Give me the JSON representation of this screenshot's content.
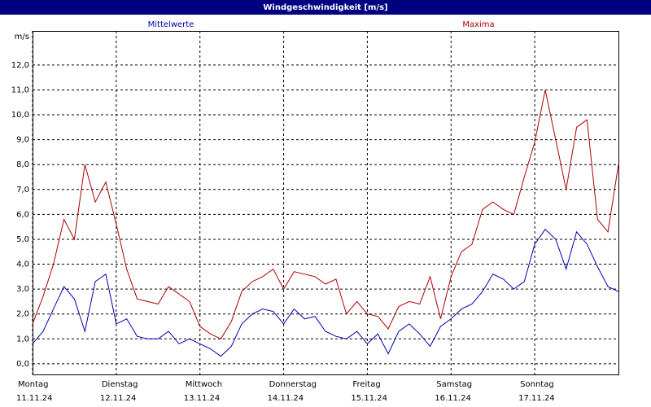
{
  "chart_data": {
    "type": "line",
    "title": "Windgeschwindigkeit [m/s]",
    "y_unit": "m/s",
    "x": [
      0,
      3,
      6,
      9,
      12,
      15,
      18,
      21,
      24,
      27,
      30,
      33,
      36,
      39,
      42,
      45,
      48,
      51,
      54,
      57,
      60,
      63,
      66,
      69,
      72,
      75,
      78,
      81,
      84,
      87,
      90,
      93,
      96,
      99,
      102,
      105,
      108,
      111,
      114,
      117,
      120,
      123,
      126,
      129,
      132,
      135,
      138,
      141,
      144,
      147,
      150,
      153,
      156,
      159,
      162,
      165,
      168
    ],
    "series": [
      {
        "name": "Mittelwerte",
        "color": "#0000b0",
        "values": [
          0.8,
          1.3,
          2.2,
          3.1,
          2.6,
          1.3,
          3.3,
          3.6,
          1.6,
          1.8,
          1.1,
          1.0,
          1.0,
          1.3,
          0.8,
          1.0,
          0.8,
          0.6,
          0.3,
          0.7,
          1.6,
          2.0,
          2.2,
          2.1,
          1.6,
          2.2,
          1.8,
          1.9,
          1.3,
          1.1,
          1.0,
          1.3,
          0.8,
          1.2,
          0.4,
          1.3,
          1.6,
          1.2,
          0.7,
          1.5,
          1.8,
          2.2,
          2.4,
          2.9,
          3.6,
          3.4,
          3.0,
          3.3,
          4.8,
          5.4,
          5.0,
          3.8,
          5.3,
          4.8,
          3.9,
          3.1,
          2.9
        ]
      },
      {
        "name": "Maxima",
        "color": "#b00000",
        "values": [
          1.6,
          2.7,
          4.0,
          5.8,
          5.0,
          8.0,
          6.5,
          7.3,
          5.6,
          3.8,
          2.6,
          2.5,
          2.4,
          3.1,
          2.8,
          2.5,
          1.5,
          1.2,
          1.0,
          1.7,
          2.9,
          3.3,
          3.5,
          3.8,
          3.0,
          3.7,
          3.6,
          3.5,
          3.2,
          3.4,
          2.0,
          2.5,
          2.0,
          1.9,
          1.4,
          2.3,
          2.5,
          2.4,
          3.5,
          1.8,
          3.5,
          4.5,
          4.8,
          6.2,
          6.5,
          6.2,
          6.0,
          7.5,
          8.9,
          11.0,
          9.0,
          7.0,
          9.5,
          9.8,
          5.8,
          5.3,
          8.0
        ]
      }
    ],
    "xlim": [
      0,
      168
    ],
    "xticks": [
      {
        "value": 0,
        "label": "Montag",
        "date": "11.11.24"
      },
      {
        "value": 24,
        "label": "Dienstag",
        "date": "12.11.24"
      },
      {
        "value": 48,
        "label": "Mittwoch",
        "date": "13.11.24"
      },
      {
        "value": 72,
        "label": "Donnerstag",
        "date": "14.11.24"
      },
      {
        "value": 96,
        "label": "Freitag",
        "date": "15.11.24"
      },
      {
        "value": 120,
        "label": "Samstag",
        "date": "16.11.24"
      },
      {
        "value": 144,
        "label": "Sonntag",
        "date": "17.11.24"
      }
    ],
    "ylim": [
      -0.43,
      13.37
    ],
    "yticks": [
      {
        "value": 0,
        "label": "0,0"
      },
      {
        "value": 1,
        "label": "1,0"
      },
      {
        "value": 2,
        "label": "2,0"
      },
      {
        "value": 3,
        "label": "3,0"
      },
      {
        "value": 4,
        "label": "4,0"
      },
      {
        "value": 5,
        "label": "5,0"
      },
      {
        "value": 6,
        "label": "6,0"
      },
      {
        "value": 7,
        "label": "7,0"
      },
      {
        "value": 8,
        "label": "8,0"
      },
      {
        "value": 9,
        "label": "9,0"
      },
      {
        "value": 10,
        "label": "10,0"
      },
      {
        "value": 11,
        "label": "11,0"
      },
      {
        "value": 12,
        "label": "12,0"
      }
    ],
    "grid": true
  }
}
